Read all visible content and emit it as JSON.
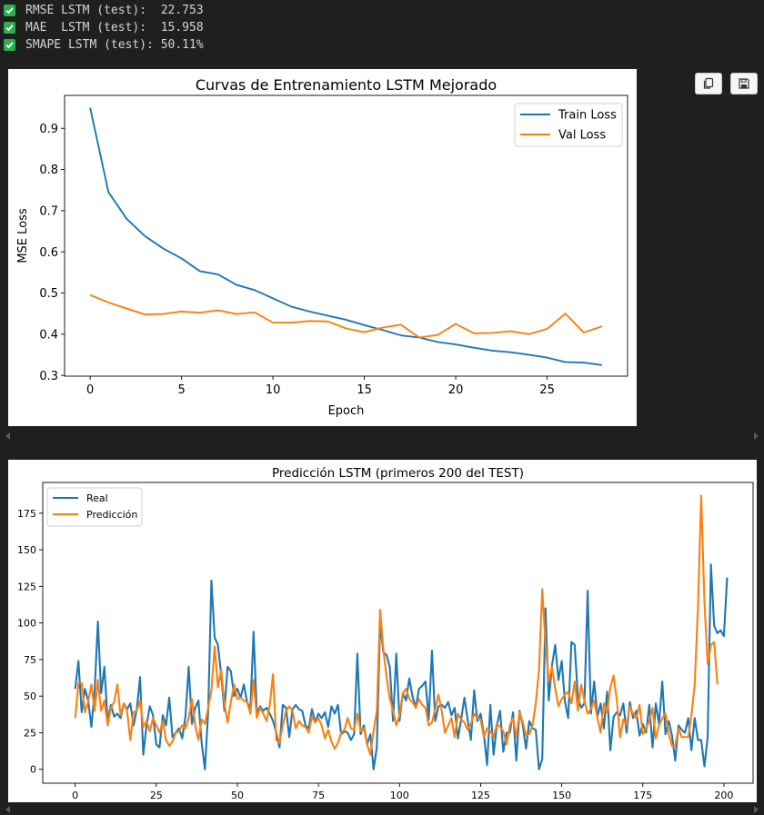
{
  "output": {
    "lines": [
      {
        "label": "RMSE LSTM (test):  22.753"
      },
      {
        "label": "MAE  LSTM (test):  15.958"
      },
      {
        "label": "SMAPE LSTM (test): 50.11%"
      }
    ]
  },
  "toolbar": {
    "copy_icon": "copy-icon",
    "save_icon": "save-icon"
  },
  "colors": {
    "blue": "#1f77b4",
    "orange": "#ff7f0e",
    "check_green": "#2eae4f",
    "background": "#1f1f1f"
  },
  "chart_data": [
    {
      "type": "line",
      "title": "Curvas de Entrenamiento LSTM Mejorado",
      "xlabel": "Epoch",
      "ylabel": "MSE Loss",
      "xlim": [
        -1.4,
        29.4
      ],
      "ylim": [
        0.298,
        0.98
      ],
      "xticks": [
        0,
        5,
        10,
        15,
        20,
        25
      ],
      "yticks": [
        0.3,
        0.4,
        0.5,
        0.6,
        0.7,
        0.8,
        0.9
      ],
      "ytick_labels": [
        "0.3",
        "0.4",
        "0.5",
        "0.6",
        "0.7",
        "0.8",
        "0.9"
      ],
      "grid": false,
      "legend": "upper right",
      "x": [
        0,
        1,
        2,
        3,
        4,
        5,
        6,
        7,
        8,
        9,
        10,
        11,
        12,
        13,
        14,
        15,
        16,
        17,
        18,
        19,
        20,
        21,
        22,
        23,
        24,
        25,
        26,
        27,
        28
      ],
      "series": [
        {
          "name": "Train Loss",
          "color": "#1f77b4",
          "values": [
            0.95,
            0.745,
            0.68,
            0.638,
            0.608,
            0.584,
            0.553,
            0.545,
            0.52,
            0.507,
            0.487,
            0.467,
            0.455,
            0.445,
            0.435,
            0.422,
            0.41,
            0.397,
            0.392,
            0.381,
            0.375,
            0.367,
            0.36,
            0.356,
            0.35,
            0.343,
            0.332,
            0.331,
            0.325
          ]
        },
        {
          "name": "Val Loss",
          "color": "#ff7f0e",
          "values": [
            0.495,
            0.477,
            0.462,
            0.448,
            0.449,
            0.455,
            0.452,
            0.458,
            0.449,
            0.453,
            0.428,
            0.428,
            0.432,
            0.431,
            0.414,
            0.405,
            0.416,
            0.423,
            0.392,
            0.398,
            0.425,
            0.402,
            0.403,
            0.407,
            0.4,
            0.413,
            0.45,
            0.404,
            0.419
          ]
        }
      ]
    },
    {
      "type": "line",
      "title": "Predicción LSTM (primeros 200 del TEST)",
      "xlabel": "",
      "ylabel": "",
      "xlim": [
        -10,
        209
      ],
      "ylim": [
        -9.5,
        196
      ],
      "xticks": [
        0,
        25,
        50,
        75,
        100,
        125,
        150,
        175,
        200
      ],
      "yticks": [
        0,
        25,
        50,
        75,
        100,
        125,
        150,
        175
      ],
      "grid": false,
      "legend": "upper left",
      "series": [
        {
          "name": "Real",
          "color": "#1f77b4",
          "values": [
            55,
            74,
            39,
            55,
            47,
            29,
            54,
            101,
            52,
            70,
            33,
            44,
            36,
            38,
            35,
            45,
            41,
            45,
            30,
            41,
            63,
            10,
            30,
            43,
            37,
            17,
            15,
            37,
            30,
            49,
            22,
            25,
            28,
            21,
            36,
            70,
            31,
            42,
            47,
            18,
            0,
            39,
            129,
            90,
            85,
            65,
            40,
            70,
            67,
            50,
            55,
            49,
            58,
            46,
            41,
            94,
            38,
            43,
            40,
            42,
            38,
            33,
            25,
            15,
            44,
            42,
            22,
            41,
            44,
            41,
            40,
            30,
            28,
            41,
            32,
            38,
            35,
            39,
            29,
            43,
            38,
            44,
            24,
            26,
            25,
            20,
            24,
            79,
            24,
            30,
            17,
            24,
            0,
            15,
            100,
            80,
            78,
            70,
            33,
            79,
            33,
            52,
            47,
            62,
            50,
            42,
            55,
            57,
            60,
            34,
            81,
            33,
            43,
            44,
            42,
            46,
            37,
            42,
            21,
            34,
            49,
            34,
            20,
            54,
            33,
            38,
            24,
            3,
            44,
            10,
            30,
            40,
            12,
            25,
            25,
            39,
            6,
            40,
            30,
            14,
            33,
            28,
            27,
            0,
            7,
            110,
            47,
            71,
            85,
            61,
            74,
            46,
            35,
            87,
            85,
            49,
            42,
            45,
            122,
            38,
            60,
            36,
            45,
            28,
            53,
            13,
            36,
            39,
            37,
            45,
            25,
            46,
            35,
            40,
            23,
            31,
            25,
            44,
            15,
            45,
            31,
            60,
            24,
            33,
            23,
            6,
            30,
            27,
            25,
            35,
            13,
            35,
            20,
            20,
            2,
            22,
            140,
            98,
            93,
            95,
            91,
            131
          ]
        },
        {
          "name": "Predicción",
          "color": "#ff7f0e",
          "values": [
            35,
            59,
            59,
            39,
            46,
            58,
            40,
            61,
            40,
            47,
            30,
            42,
            46,
            58,
            37,
            45,
            40,
            20,
            39,
            40,
            47,
            29,
            33,
            26,
            35,
            30,
            25,
            33,
            20,
            16,
            19,
            25,
            26,
            30,
            28,
            35,
            48,
            30,
            20,
            34,
            31,
            42,
            54,
            84,
            56,
            68,
            45,
            32,
            46,
            58,
            48,
            49,
            47,
            46,
            38,
            61,
            35,
            42,
            38,
            33,
            44,
            65,
            20,
            18,
            30,
            40,
            43,
            40,
            28,
            33,
            30,
            29,
            25,
            36,
            32,
            35,
            30,
            21,
            27,
            19,
            14,
            18,
            25,
            27,
            35,
            28,
            27,
            38,
            26,
            28,
            17,
            10,
            26,
            40,
            109,
            82,
            63,
            48,
            40,
            30,
            37,
            52,
            55,
            48,
            46,
            42,
            48,
            44,
            42,
            30,
            32,
            41,
            51,
            40,
            25,
            30,
            35,
            22,
            38,
            34,
            32,
            27,
            31,
            38,
            35,
            34,
            22,
            28,
            26,
            22,
            31,
            29,
            26,
            17,
            30,
            35,
            22,
            39,
            32,
            23,
            24,
            30,
            45,
            68,
            123,
            86,
            60,
            70,
            55,
            43,
            48,
            51,
            53,
            45,
            60,
            40,
            58,
            47,
            38,
            41,
            47,
            35,
            25,
            45,
            39,
            56,
            64,
            47,
            22,
            34,
            30,
            43,
            38,
            35,
            44,
            24,
            28,
            33,
            42,
            21,
            30,
            35,
            38,
            24,
            16,
            16,
            28,
            22,
            22,
            22,
            37,
            58,
            110,
            187,
            114,
            72,
            85,
            87,
            58
          ]
        }
      ]
    }
  ]
}
